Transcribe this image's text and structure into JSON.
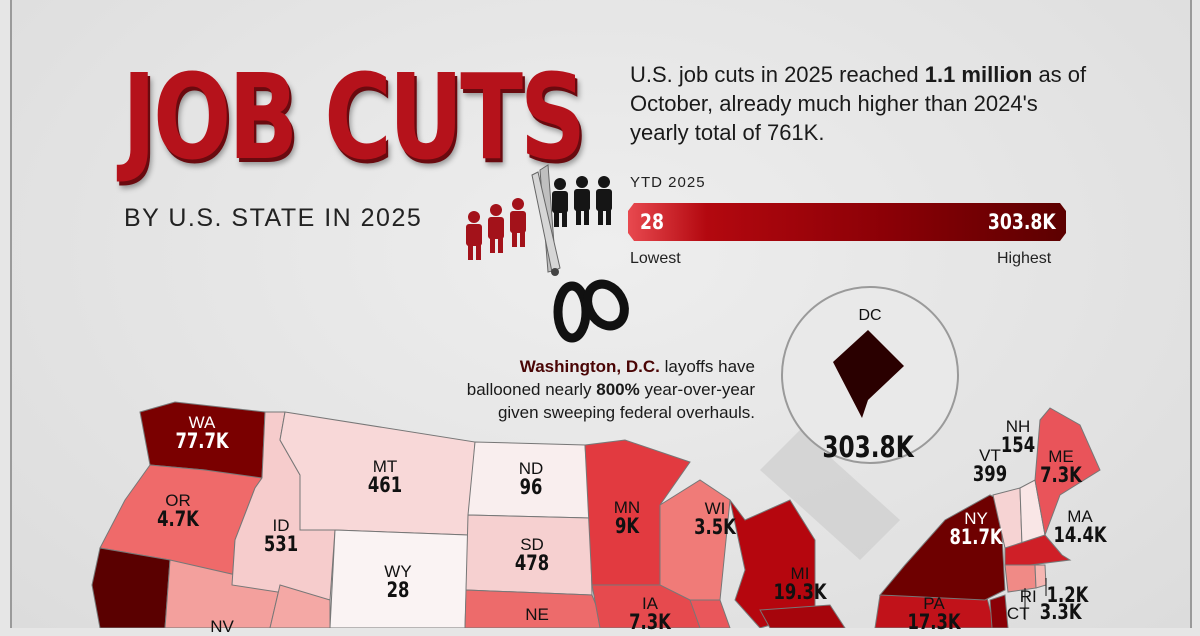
{
  "title": "JOB CUTS",
  "subtitle": "BY U.S. STATE IN 2025",
  "intro": {
    "pre": "U.S. job cuts in 2025 reached ",
    "bold": "1.1 million",
    "post": " as of October, already much higher than 2024's yearly total of 761K."
  },
  "legend": {
    "label": "YTD 2025",
    "min_value": "28",
    "max_value": "303.8K",
    "min_label": "Lowest",
    "max_label": "Highest",
    "color_low": "#e8494f",
    "color_high": "#5c0000"
  },
  "annotation": {
    "bold1": "Washington, D.C.",
    "text1": " layoffs have ballooned nearly ",
    "bold2": "800%",
    "text2": " year-over-year given sweeping federal overhauls."
  },
  "callout": {
    "state": "DC",
    "value": "303.8K",
    "color": "#2a0000"
  },
  "map_data": {
    "states": [
      {
        "abbr": "WA",
        "value": "77.7K",
        "color": "#7a0000"
      },
      {
        "abbr": "OR",
        "value": "4.7K",
        "color": "#ef6a6a"
      },
      {
        "abbr": "MT",
        "value": "461",
        "color": "#f8d8d8"
      },
      {
        "abbr": "ID",
        "value": "531",
        "color": "#f6cccc"
      },
      {
        "abbr": "ND",
        "value": "96",
        "color": "#f9eeee"
      },
      {
        "abbr": "SD",
        "value": "478",
        "color": "#f6d0d0"
      },
      {
        "abbr": "WY",
        "value": "28",
        "color": "#faf3f3"
      },
      {
        "abbr": "MN",
        "value": "9K",
        "color": "#e23a40"
      },
      {
        "abbr": "WI",
        "value": "3.5K",
        "color": "#f07b78"
      },
      {
        "abbr": "MI",
        "value": "19.3K",
        "color": "#b5060e"
      },
      {
        "abbr": "IA",
        "value": "7.3K",
        "color": "#e64a4e"
      },
      {
        "abbr": "NE",
        "value": "",
        "color": "#ed6b6b"
      },
      {
        "abbr": "NV",
        "value": "",
        "color": "#f3a09d"
      },
      {
        "abbr": "NY",
        "value": "81.7K",
        "color": "#6e0000"
      },
      {
        "abbr": "PA",
        "value": "17.3K",
        "color": "#c1121a"
      },
      {
        "abbr": "VT",
        "value": "399",
        "color": "#f6d3d3"
      },
      {
        "abbr": "NH",
        "value": "154",
        "color": "#f9e6e6"
      },
      {
        "abbr": "ME",
        "value": "7.3K",
        "color": "#e9545a"
      },
      {
        "abbr": "MA",
        "value": "14.4K",
        "color": "#cf1f27"
      },
      {
        "abbr": "RI",
        "value": "1.2K",
        "color": "#f6b6b2"
      },
      {
        "abbr": "CT",
        "value": "3.3K",
        "color": "#f08a86"
      }
    ]
  }
}
